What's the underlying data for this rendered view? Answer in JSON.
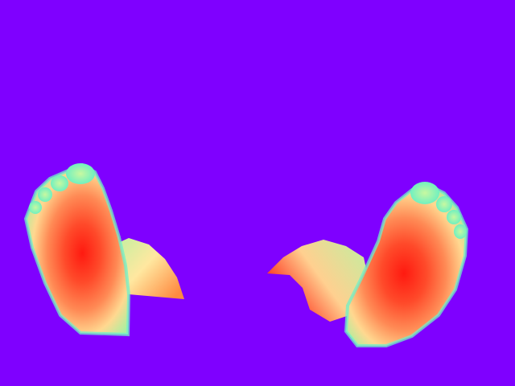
{
  "image": {
    "kind": "depth-map",
    "subject": "two feet soles",
    "background_color": "#7f00ff",
    "colormap": [
      "#7f00ff",
      "#4ef0c8",
      "#a8f090",
      "#ffd080",
      "#ff8040",
      "#ff1010"
    ]
  }
}
